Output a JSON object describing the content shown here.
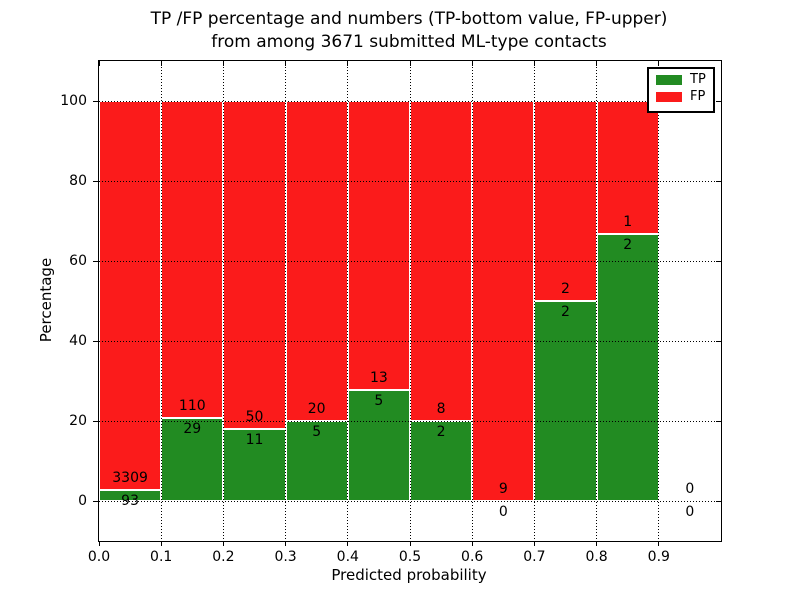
{
  "title": {
    "line1": "TP /FP percentage and numbers (TP-bottom value, FP-upper)",
    "line2": "from among 3671 submitted ML-type contacts"
  },
  "legend": {
    "items": [
      {
        "label": "TP",
        "color": "#228b22"
      },
      {
        "label": "FP",
        "color": "#fb1b1b"
      }
    ]
  },
  "chart_data": {
    "type": "bar",
    "stacked": true,
    "orientation": "vertical",
    "title": "TP /FP percentage and numbers (TP-bottom value, FP-upper) from among 3671 submitted ML-type contacts",
    "total_contacts": 3671,
    "xlabel": "Predicted probability",
    "ylabel": "Percentage",
    "xlim": [
      0.0,
      1.0
    ],
    "ylim": [
      -10,
      110
    ],
    "xticks": [
      0.0,
      0.1,
      0.2,
      0.3,
      0.4,
      0.5,
      0.6,
      0.7,
      0.8,
      0.9
    ],
    "xtick_labels": [
      "0.0",
      "0.1",
      "0.2",
      "0.3",
      "0.4",
      "0.5",
      "0.6",
      "0.7",
      "0.8",
      "0.9"
    ],
    "yticks": [
      0,
      20,
      40,
      60,
      80,
      100
    ],
    "grid": "dotted",
    "legend_position": "upper right",
    "bin_edges": [
      0.0,
      0.1,
      0.2,
      0.3,
      0.4,
      0.5,
      0.6,
      0.7,
      0.8,
      0.9,
      1.0
    ],
    "series": [
      {
        "name": "TP",
        "color": "#228b22",
        "values": [
          93,
          29,
          11,
          5,
          5,
          2,
          0,
          2,
          2,
          0
        ]
      },
      {
        "name": "FP",
        "color": "#fb1b1b",
        "values": [
          3309,
          110,
          50,
          20,
          13,
          8,
          9,
          2,
          1,
          0
        ]
      }
    ],
    "tp_percent_by_bin": [
      2.73,
      20.86,
      18.03,
      20.0,
      27.78,
      20.0,
      0.0,
      50.0,
      66.67,
      null
    ]
  }
}
